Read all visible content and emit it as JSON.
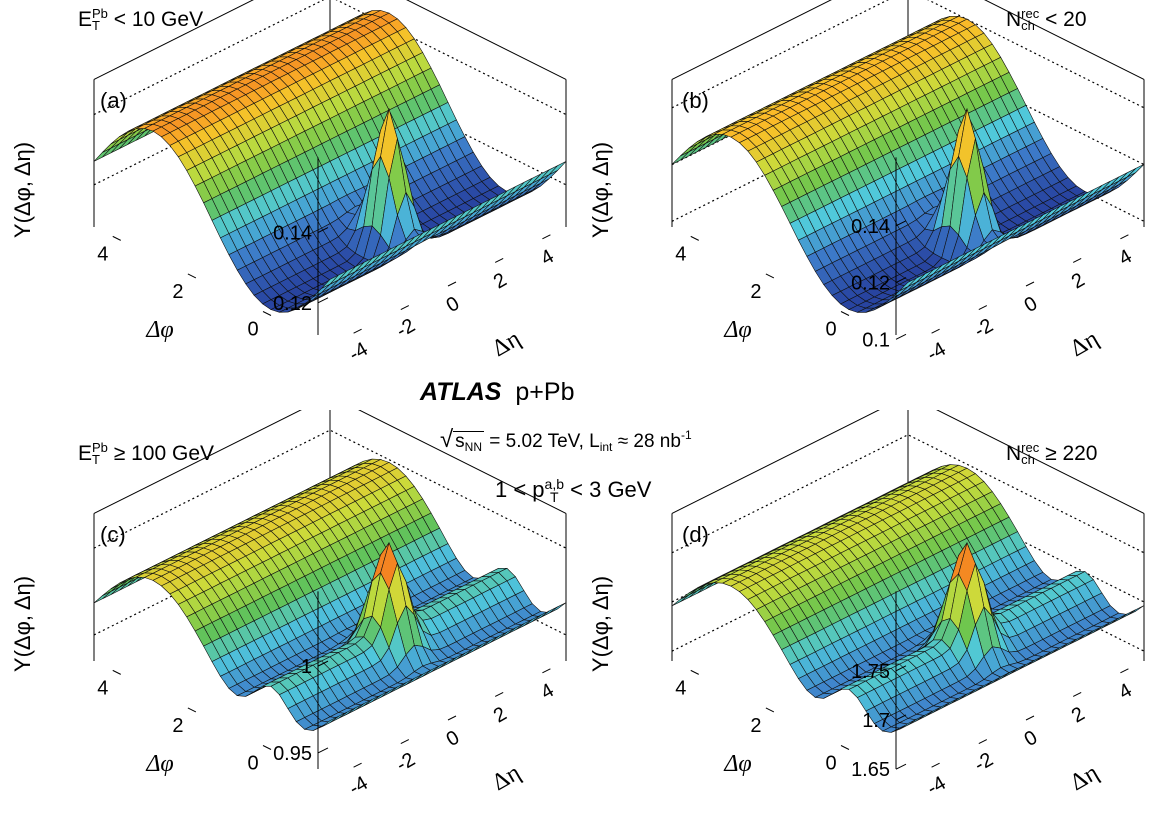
{
  "figure": {
    "title": "ATLAS",
    "system": "p+Pb",
    "energy_label": "= 5.02 TeV, L",
    "sqrt_s_symbol": "s",
    "sqrt_s_sub": "NN",
    "lumi_sub": "int",
    "lumi_value": "≈ 28 nb",
    "lumi_exp": "-1",
    "pt_range_prefix": "1 < p",
    "pt_sup": "a,b",
    "pt_sub": "T",
    "pt_range_suffix": "< 3 GeV"
  },
  "colors": {
    "low": "#2c4a9c",
    "mid": "#6cc24a",
    "high": "#e8241c"
  },
  "chart_data": [
    {
      "type": "surface",
      "panel_label": "(a)",
      "condition": {
        "var": "E",
        "sub": "T",
        "sup": "Pb",
        "text": "< 10 GeV"
      },
      "zlabel": "Y(Δφ, Δη)",
      "xlabel": "Δφ",
      "ylabel": "Δη",
      "x_ticks": [
        "0",
        "2",
        "4"
      ],
      "y_ticks": [
        "-4",
        "-2",
        "0",
        "2",
        "4"
      ],
      "z_ticks": [
        "0.12",
        "0.14"
      ],
      "zlim": [
        0.108,
        0.15
      ],
      "near_side_ridge": false,
      "away_side_amplitude": 0.034,
      "near_side_peak": 0.15
    },
    {
      "type": "surface",
      "panel_label": "(b)",
      "condition": {
        "var": "N",
        "sub": "ch",
        "sup": "rec",
        "text": "< 20"
      },
      "zlabel": "Y(Δφ, Δη)",
      "xlabel": "Δφ",
      "ylabel": "Δη",
      "x_ticks": [
        "0",
        "2",
        "4"
      ],
      "y_ticks": [
        "-4",
        "-2",
        "0",
        "2",
        "4"
      ],
      "z_ticks": [
        "0.1",
        "0.12",
        "0.14"
      ],
      "zlim": [
        0.098,
        0.15
      ],
      "near_side_ridge": false,
      "away_side_amplitude": 0.04,
      "near_side_peak": 0.15
    },
    {
      "type": "surface",
      "panel_label": "(c)",
      "condition": {
        "var": "E",
        "sub": "T",
        "sup": "Pb",
        "text": "≥ 100 GeV"
      },
      "zlabel": "Y(Δφ, Δη)",
      "xlabel": "Δφ",
      "ylabel": "Δη",
      "x_ticks": [
        "0",
        "2",
        "4"
      ],
      "y_ticks": [
        "-4",
        "-2",
        "0",
        "2",
        "4"
      ],
      "z_ticks": [
        "0.95",
        "1"
      ],
      "zlim": [
        0.935,
        1.02
      ],
      "near_side_ridge": true,
      "away_side_amplitude": 0.06,
      "near_side_peak": 1.02
    },
    {
      "type": "surface",
      "panel_label": "(d)",
      "condition": {
        "var": "N",
        "sub": "ch",
        "sup": "rec",
        "text": "≥ 220"
      },
      "zlabel": "Y(Δφ, Δη)",
      "xlabel": "Δφ",
      "ylabel": "Δη",
      "x_ticks": [
        "0",
        "2",
        "4"
      ],
      "y_ticks": [
        "-4",
        "-2",
        "0",
        "2",
        "4"
      ],
      "z_ticks": [
        "1.65",
        "1.7",
        "1.75"
      ],
      "zlim": [
        1.64,
        1.79
      ],
      "near_side_ridge": true,
      "away_side_amplitude": 0.1,
      "near_side_peak": 1.79
    }
  ]
}
